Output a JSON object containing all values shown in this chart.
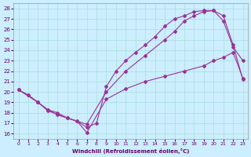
{
  "xlabel": "Windchill (Refroidissement éolien,°C)",
  "bg_color": "#cceeff",
  "line_color": "#993399",
  "xlim": [
    -0.5,
    23.5
  ],
  "ylim": [
    15.5,
    28.5
  ],
  "xticks": [
    0,
    1,
    2,
    3,
    4,
    5,
    6,
    7,
    8,
    9,
    10,
    11,
    12,
    13,
    14,
    15,
    16,
    17,
    18,
    19,
    20,
    21,
    22,
    23
  ],
  "yticks": [
    16,
    17,
    18,
    19,
    20,
    21,
    22,
    23,
    24,
    25,
    26,
    27,
    28
  ],
  "line1_x": [
    0,
    1,
    2,
    3,
    4,
    5,
    6,
    7,
    9,
    11,
    13,
    15,
    17,
    19,
    20,
    21,
    22,
    23
  ],
  "line1_y": [
    20.2,
    19.7,
    19.0,
    18.3,
    17.8,
    17.5,
    17.2,
    16.1,
    19.3,
    20.3,
    21.0,
    21.5,
    22.0,
    22.5,
    23.0,
    23.3,
    23.8,
    21.3
  ],
  "line2_x": [
    0,
    1,
    2,
    3,
    5,
    7,
    9,
    11,
    13,
    15,
    16,
    17,
    18,
    19,
    20,
    21,
    22,
    23
  ],
  "line2_y": [
    20.2,
    19.7,
    19.0,
    18.2,
    17.5,
    16.9,
    20.0,
    22.0,
    23.5,
    25.0,
    25.8,
    26.8,
    27.3,
    27.7,
    27.8,
    26.8,
    24.3,
    23.0
  ],
  "line3_x": [
    0,
    2,
    3,
    4,
    5,
    6,
    7,
    8,
    9,
    10,
    11,
    12,
    13,
    14,
    15,
    16,
    17,
    18,
    19,
    20,
    21,
    22,
    23
  ],
  "line3_y": [
    20.2,
    19.0,
    18.3,
    18.0,
    17.5,
    17.2,
    16.6,
    17.0,
    20.5,
    22.0,
    23.0,
    23.8,
    24.5,
    25.3,
    26.3,
    27.0,
    27.3,
    27.7,
    27.8,
    27.8,
    27.3,
    24.5,
    21.2
  ]
}
